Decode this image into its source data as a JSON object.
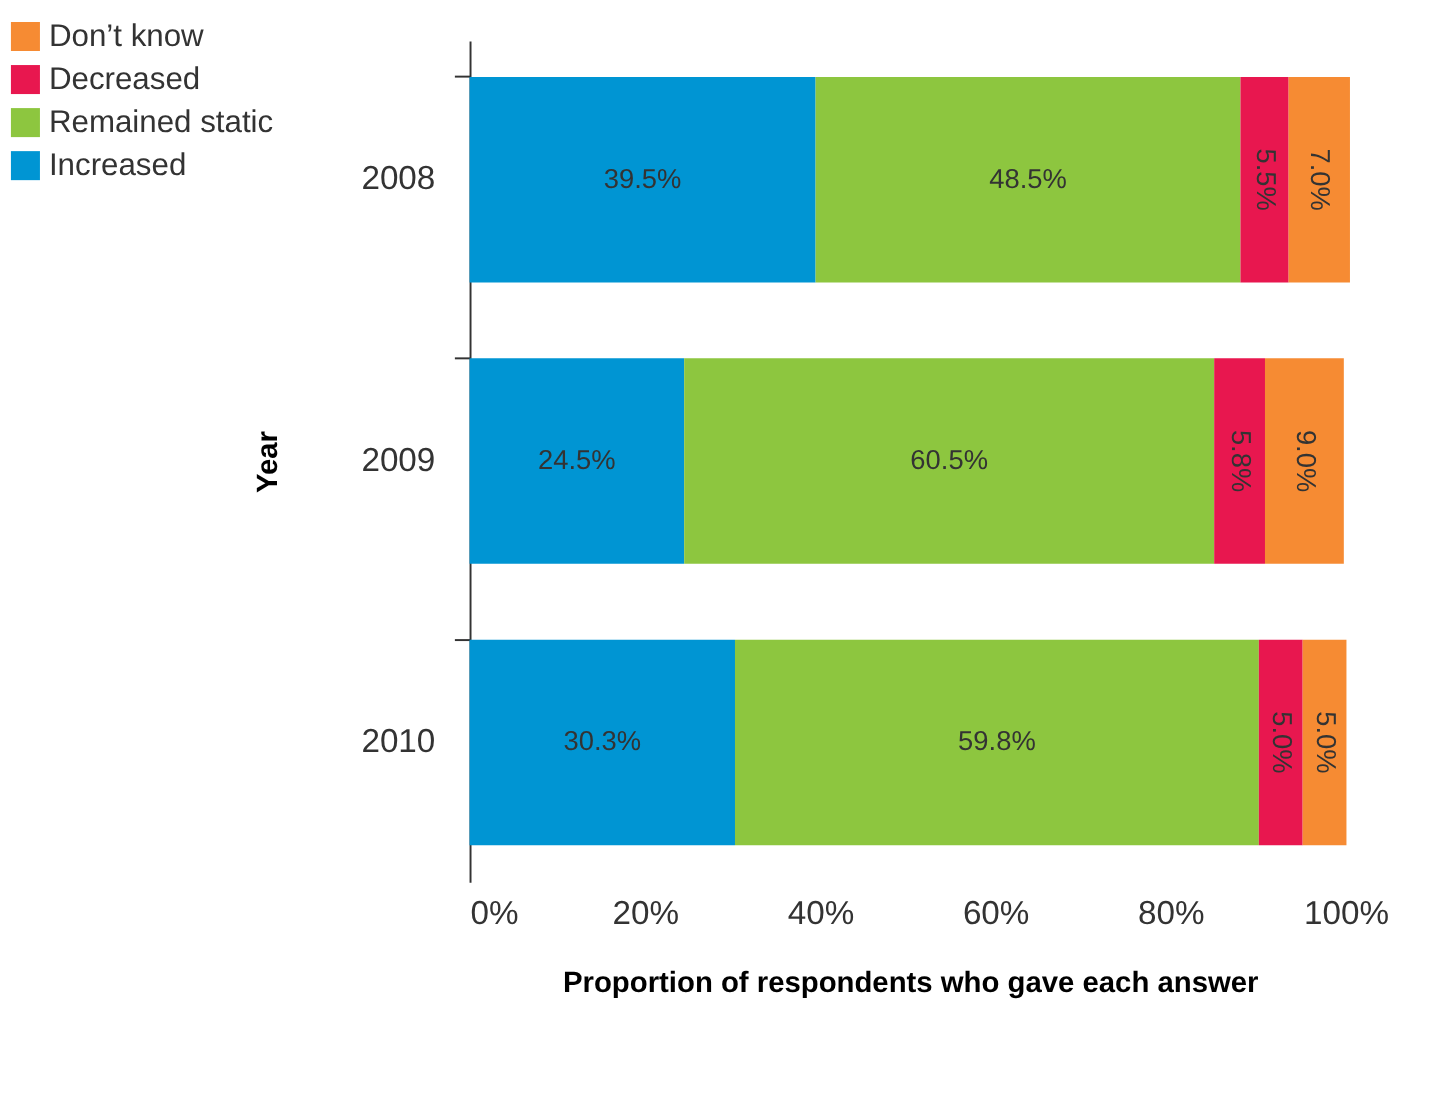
{
  "chart_data": {
    "type": "bar",
    "orientation": "horizontal",
    "stacked": true,
    "xlabel": "Proportion of respondents who gave each answer",
    "ylabel": "Year",
    "categories": [
      "2008",
      "2009",
      "2010"
    ],
    "series": [
      {
        "name": "Increased",
        "color": "#0095d3",
        "values": [
          39.5,
          24.5,
          30.3
        ],
        "value_labels": [
          "39.5%",
          "24.5%",
          "30.3%"
        ]
      },
      {
        "name": "Remained static",
        "color": "#8dc63f",
        "values": [
          48.5,
          60.5,
          59.8
        ],
        "value_labels": [
          "48.5%",
          "60.5%",
          "59.8%"
        ]
      },
      {
        "name": "Decreased",
        "color": "#e8174f",
        "values": [
          5.5,
          5.8,
          5.0
        ],
        "value_labels": [
          "5.5%",
          "5.8%",
          "5.0%"
        ]
      },
      {
        "name": "Don’t know",
        "color": "#f68b33",
        "values": [
          7.0,
          9.0,
          5.0
        ],
        "value_labels": [
          "7.0%",
          "9.0%",
          "5.0%"
        ]
      }
    ],
    "xlim": [
      0,
      100.5
    ],
    "xticks": [
      {
        "value": 0,
        "label": "0%"
      },
      {
        "value": 20,
        "label": "20%"
      },
      {
        "value": 40,
        "label": "40%"
      },
      {
        "value": 60,
        "label": "60%"
      },
      {
        "value": 80,
        "label": "80%"
      },
      {
        "value": 100,
        "label": "100%"
      }
    ],
    "legend": "top left",
    "grid": false
  }
}
